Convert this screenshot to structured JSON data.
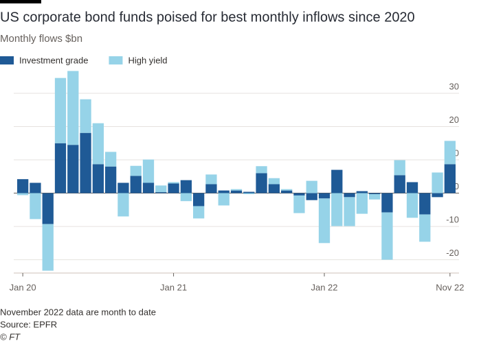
{
  "chart_data": {
    "type": "bar",
    "stacked": true,
    "title": "US corporate bond funds poised for best monthly inflows since 2020",
    "subtitle": "Monthly flows $bn",
    "note": "November 2022 data are month to date",
    "source": "Source: EPFR",
    "credit": "© FT",
    "categories": [
      "Jan 20",
      null,
      null,
      null,
      null,
      null,
      null,
      null,
      null,
      null,
      null,
      null,
      "Jan 21",
      null,
      null,
      null,
      null,
      null,
      null,
      null,
      null,
      null,
      null,
      null,
      "Jan 22",
      null,
      null,
      null,
      null,
      null,
      null,
      null,
      null,
      null,
      "Nov 22"
    ],
    "series": [
      {
        "name": "Investment grade",
        "color": "#1f5a96",
        "values": [
          4.2,
          3.1,
          -9.3,
          15,
          14.5,
          18.1,
          8.7,
          8,
          3.1,
          5.2,
          3.1,
          0.3,
          2.9,
          3.9,
          -3.9,
          2.7,
          0.8,
          0.8,
          0.4,
          6,
          2.7,
          0.8,
          -0.7,
          -2.1,
          -1.6,
          7,
          -1.2,
          0.6,
          -0.3,
          -5.8,
          5.4,
          3.3,
          -6.4,
          -1.2,
          8.7
        ]
      },
      {
        "name": "High yield",
        "color": "#96d3e8",
        "values": [
          -0.6,
          -7.8,
          -14,
          19.6,
          22.2,
          10.1,
          12.3,
          4.4,
          -7,
          3,
          7,
          2,
          0.4,
          -2.4,
          -3.7,
          2.9,
          -3.7,
          0.4,
          -0.3,
          2.1,
          1.8,
          0.4,
          -5.3,
          3.7,
          -13.4,
          -9.9,
          -8.7,
          -6.2,
          -1.6,
          -14.2,
          4.5,
          -7.4,
          -8.2,
          6.2,
          7
        ]
      }
    ],
    "ylim": [
      -24,
      37
    ],
    "yticks": [
      -20,
      -10,
      0,
      10,
      20,
      30
    ],
    "grid": true
  }
}
